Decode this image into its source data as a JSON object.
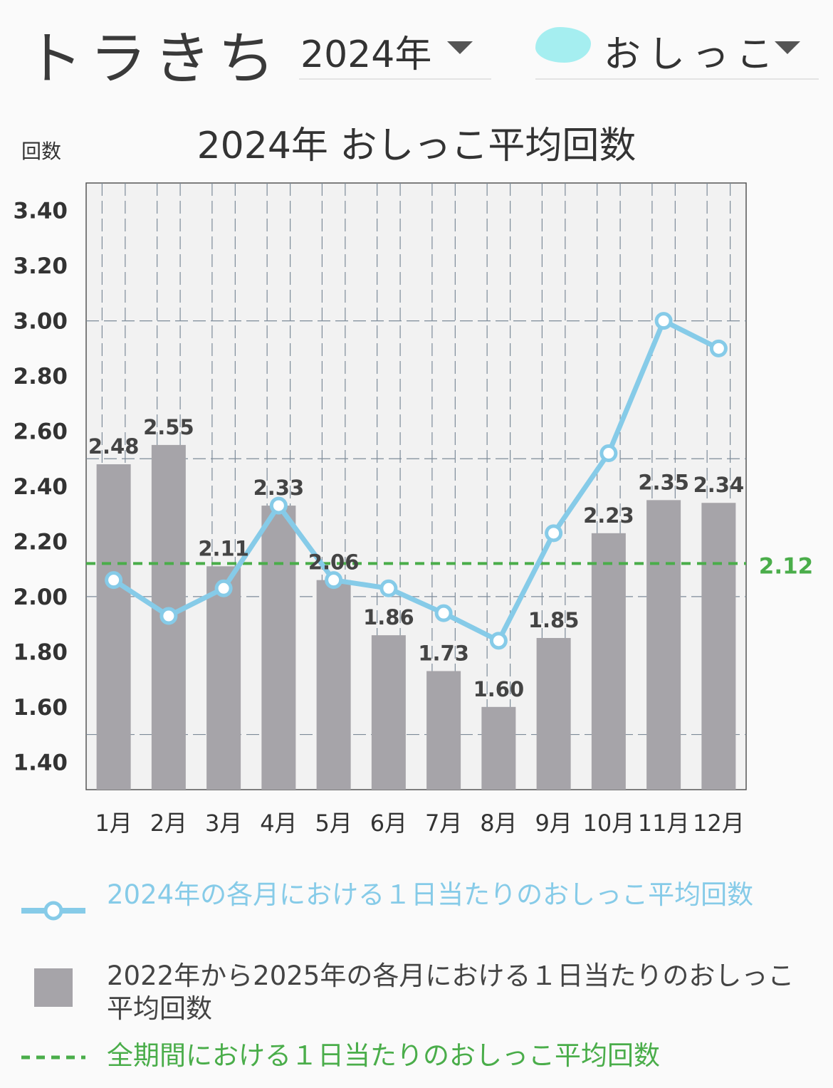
{
  "header": {
    "pet_name": "トラきち",
    "year_select": "2024年",
    "type_select": "おしっこ",
    "type_icon": "urine-blob-icon"
  },
  "colors": {
    "line": "#86cbe8",
    "bar": "#a6a4a9",
    "average": "#4aad4a",
    "plot_bg": "#f2f2f2",
    "grid": "#7d8b99"
  },
  "legend": {
    "line_label": "2024年の各月における１日当たりのおしっこ平均回数",
    "bar_label": "2022年から2025年の各月における１日当たりのおしっこ平均回数",
    "average_label": "全期間における１日当たりのおしっこ平均回数"
  },
  "chart_data": {
    "type": "bar",
    "title": "2024年 おしっこ平均回数",
    "ylabel": "回数",
    "xlabel": "",
    "ylim": [
      1.3,
      3.5
    ],
    "yticks": [
      "1.40",
      "1.60",
      "1.80",
      "2.00",
      "2.20",
      "2.40",
      "2.60",
      "2.80",
      "3.00",
      "3.20",
      "3.40"
    ],
    "categories": [
      "1月",
      "2月",
      "3月",
      "4月",
      "5月",
      "6月",
      "7月",
      "8月",
      "9月",
      "10月",
      "11月",
      "12月"
    ],
    "grid": true,
    "series": [
      {
        "type": "bar",
        "values": [
          2.48,
          2.55,
          2.11,
          2.33,
          2.06,
          1.86,
          1.73,
          1.6,
          1.85,
          2.23,
          2.35,
          2.34
        ],
        "labels": [
          "2.48",
          "2.55",
          "2.11",
          "2.33",
          "2.06",
          "1.86",
          "1.73",
          "1.60",
          "1.85",
          "2.23",
          "2.35",
          "2.34"
        ]
      },
      {
        "type": "line",
        "values": [
          2.06,
          1.93,
          2.03,
          2.33,
          2.06,
          2.03,
          1.94,
          1.84,
          2.23,
          2.52,
          3.0,
          2.9
        ]
      }
    ],
    "average": {
      "value": 2.12,
      "label": "2.12"
    }
  }
}
